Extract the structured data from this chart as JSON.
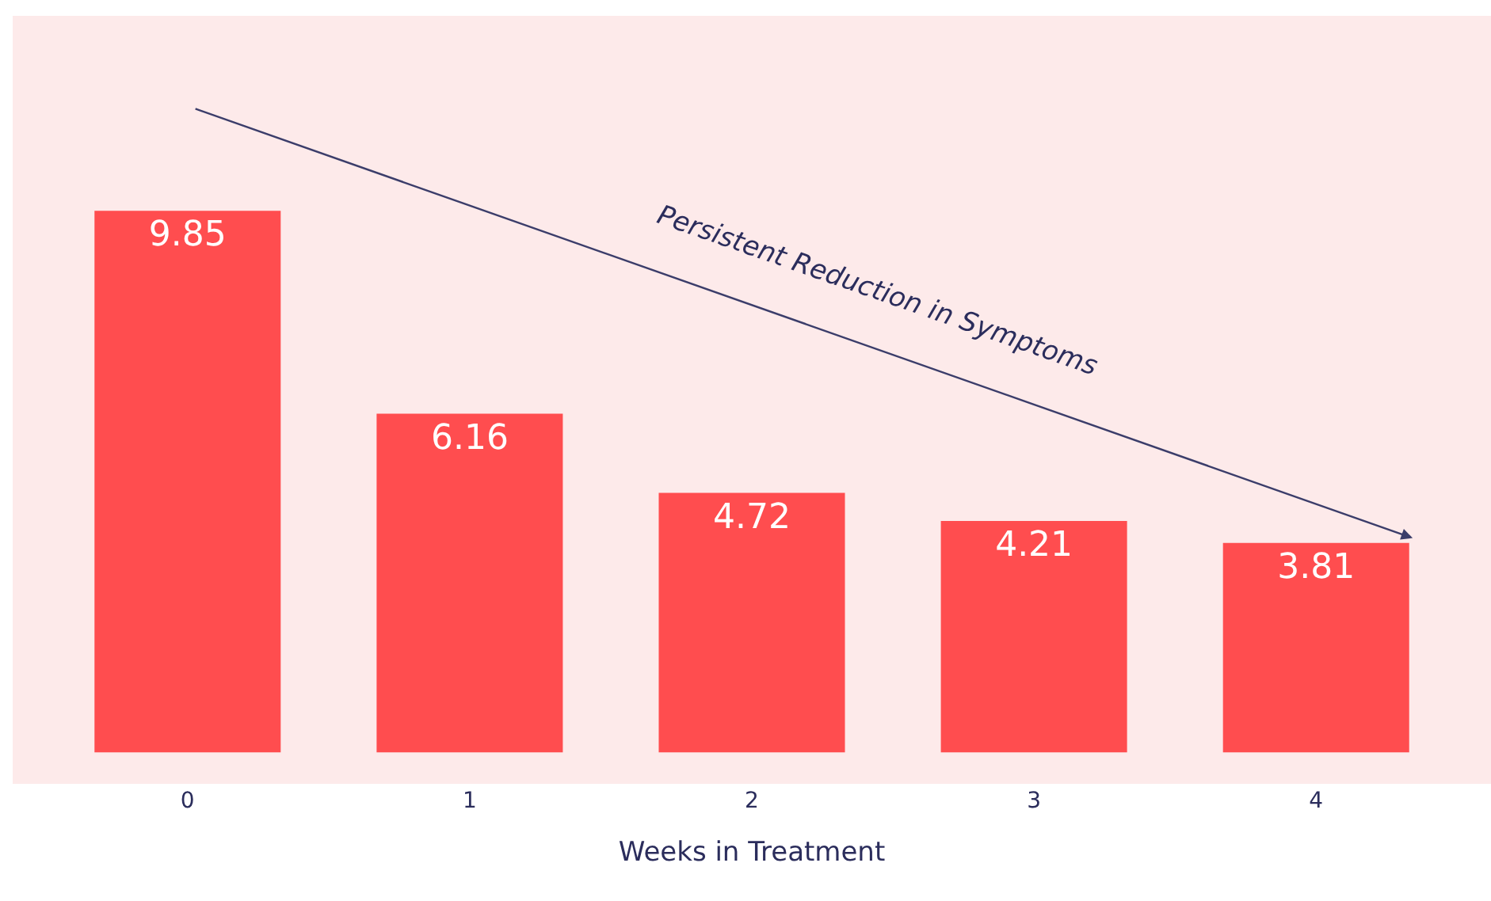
{
  "chart_data": {
    "type": "bar",
    "xlabel": "Weeks in Treatment",
    "categories": [
      "0",
      "1",
      "2",
      "3",
      "4"
    ],
    "values": [
      9.85,
      6.16,
      4.72,
      4.21,
      3.81
    ],
    "color": "#ff4d4f",
    "data_labels": true,
    "annotations": [
      "Persistent Reduction in Symptoms"
    ]
  }
}
